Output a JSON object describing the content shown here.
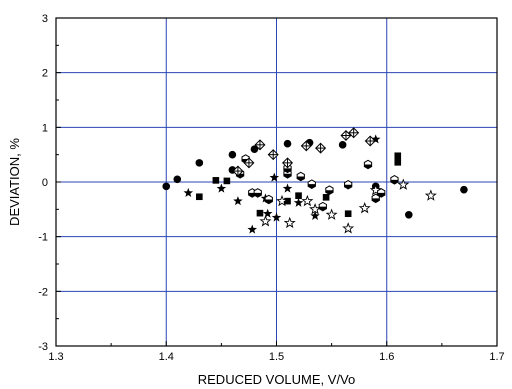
{
  "chart_data": {
    "type": "scatter",
    "title": "",
    "xlabel": "REDUCED VOLUME, V/Vo",
    "ylabel": "DEVIATION, %",
    "xlim": [
      1.3,
      1.7
    ],
    "ylim": [
      -3,
      3
    ],
    "x_ticks": [
      1.3,
      1.4,
      1.5,
      1.6,
      1.7
    ],
    "y_ticks": [
      -3,
      -2,
      -1,
      0,
      1,
      2,
      3
    ],
    "x_tick_labels": [
      "1.3",
      "1.4",
      "1.5",
      "1.6",
      "1.7"
    ],
    "y_tick_labels": [
      "-3",
      "-2",
      "-1",
      "0",
      "1",
      "2",
      "3"
    ],
    "grid": true,
    "grid_color": "#2a46b4",
    "legend": "none",
    "series": [
      {
        "marker": "filled-circle",
        "points": [
          [
            1.4,
            -0.08
          ],
          [
            1.41,
            0.05
          ],
          [
            1.43,
            0.35
          ],
          [
            1.46,
            0.5
          ],
          [
            1.46,
            0.22
          ],
          [
            1.48,
            0.6
          ],
          [
            1.51,
            0.7
          ],
          [
            1.53,
            0.72
          ],
          [
            1.56,
            0.68
          ],
          [
            1.59,
            -0.08
          ],
          [
            1.62,
            -0.6
          ],
          [
            1.67,
            -0.14
          ]
        ]
      },
      {
        "marker": "filled-square",
        "points": [
          [
            1.43,
            -0.27
          ],
          [
            1.445,
            0.03
          ],
          [
            1.455,
            0.02
          ],
          [
            1.485,
            -0.57
          ],
          [
            1.51,
            -0.35
          ],
          [
            1.52,
            -0.25
          ],
          [
            1.545,
            -0.28
          ],
          [
            1.565,
            -0.58
          ],
          [
            1.61,
            0.48
          ],
          [
            1.61,
            0.36
          ]
        ]
      },
      {
        "marker": "filled-star",
        "points": [
          [
            1.42,
            -0.2
          ],
          [
            1.45,
            -0.12
          ],
          [
            1.465,
            -0.35
          ],
          [
            1.478,
            -0.87
          ],
          [
            1.49,
            -0.3
          ],
          [
            1.492,
            -0.58
          ],
          [
            1.498,
            0.08
          ],
          [
            1.5,
            -0.65
          ],
          [
            1.51,
            -0.12
          ],
          [
            1.52,
            -0.38
          ],
          [
            1.535,
            -0.62
          ],
          [
            1.59,
            0.78
          ]
        ]
      },
      {
        "marker": "open-star",
        "points": [
          [
            1.49,
            -0.72
          ],
          [
            1.505,
            -0.35
          ],
          [
            1.512,
            -0.75
          ],
          [
            1.528,
            -0.35
          ],
          [
            1.535,
            -0.5
          ],
          [
            1.55,
            -0.6
          ],
          [
            1.565,
            -0.85
          ],
          [
            1.58,
            -0.48
          ],
          [
            1.59,
            -0.15
          ],
          [
            1.615,
            -0.05
          ],
          [
            1.64,
            -0.25
          ]
        ]
      },
      {
        "marker": "half-hexagon",
        "points": [
          [
            1.467,
            0.15
          ],
          [
            1.472,
            0.42
          ],
          [
            1.478,
            -0.2
          ],
          [
            1.483,
            -0.2
          ],
          [
            1.493,
            -0.32
          ],
          [
            1.51,
            0.15
          ],
          [
            1.522,
            0.1
          ],
          [
            1.532,
            -0.04
          ],
          [
            1.542,
            -0.45
          ],
          [
            1.548,
            -0.15
          ],
          [
            1.565,
            -0.05
          ],
          [
            1.583,
            0.32
          ],
          [
            1.59,
            -0.3
          ],
          [
            1.595,
            -0.2
          ],
          [
            1.607,
            0.04
          ],
          [
            1.51,
            0.25
          ]
        ]
      },
      {
        "marker": "crossed-diamond",
        "points": [
          [
            1.465,
            0.2
          ],
          [
            1.475,
            0.35
          ],
          [
            1.485,
            0.68
          ],
          [
            1.497,
            0.5
          ],
          [
            1.51,
            0.35
          ],
          [
            1.527,
            0.66
          ],
          [
            1.54,
            0.62
          ],
          [
            1.563,
            0.85
          ],
          [
            1.57,
            0.9
          ],
          [
            1.585,
            0.75
          ]
        ]
      }
    ]
  }
}
